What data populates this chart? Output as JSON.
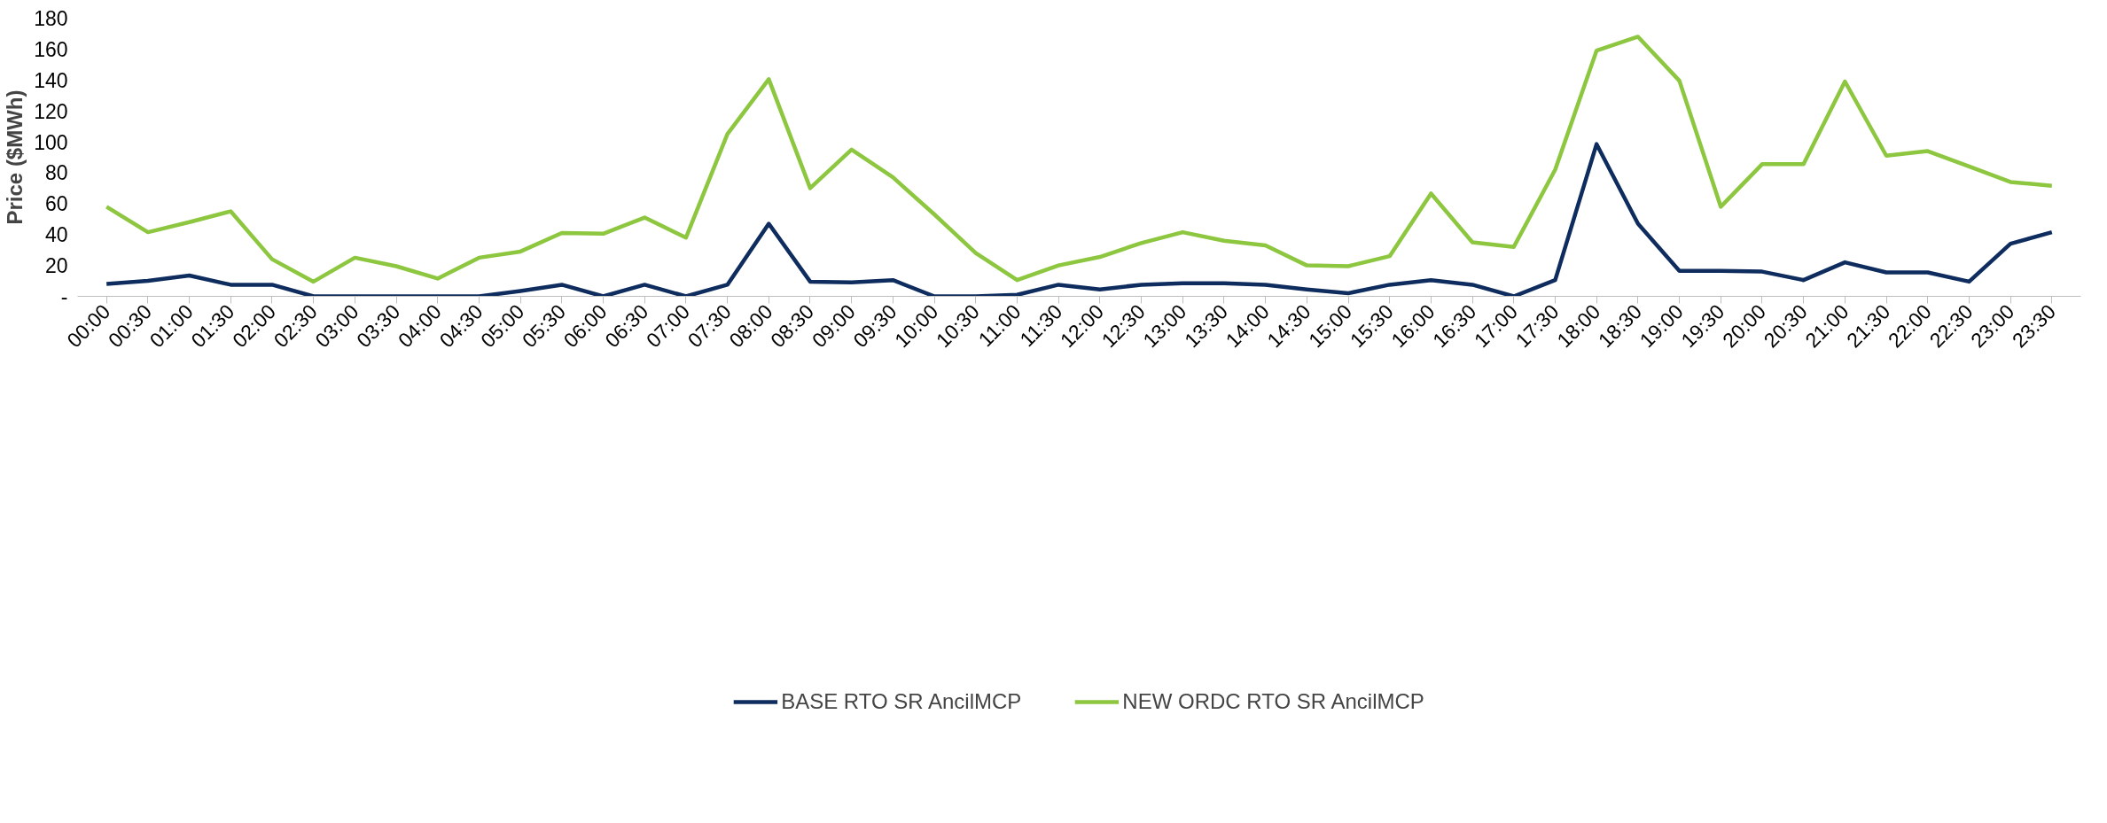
{
  "chart_data": {
    "type": "line",
    "ylabel": "Price ($MWh)",
    "categories": [
      "00:00",
      "00:30",
      "01:00",
      "01:30",
      "02:00",
      "02:30",
      "03:00",
      "03:30",
      "04:00",
      "04:30",
      "05:00",
      "05:30",
      "06:00",
      "06:30",
      "07:00",
      "07:30",
      "08:00",
      "08:30",
      "09:00",
      "09:30",
      "10:00",
      "10:30",
      "11:00",
      "11:30",
      "12:00",
      "12:30",
      "13:00",
      "13:30",
      "14:00",
      "14:30",
      "15:00",
      "15:30",
      "16:00",
      "16:30",
      "17:00",
      "17:30",
      "18:00",
      "18:30",
      "19:00",
      "19:30",
      "20:00",
      "20:30",
      "21:00",
      "21:30",
      "22:00",
      "22:30",
      "23:00",
      "23:30"
    ],
    "series": [
      {
        "name": "BASE RTO SR AncilMCP",
        "color": "#0e2d5e",
        "values": [
          8,
          10,
          13.5,
          7.5,
          7.5,
          0,
          0,
          0,
          0,
          0,
          3.5,
          7.5,
          0,
          7.5,
          0,
          7.5,
          47,
          9.5,
          9,
          10.5,
          0,
          0,
          1,
          7.5,
          4.5,
          7.5,
          8.5,
          8.5,
          7.5,
          4.5,
          2,
          7.5,
          10.5,
          7.5,
          0,
          10.5,
          98.5,
          47,
          16.5,
          16.5,
          16,
          10.5,
          22,
          15.5,
          15.5,
          9.5,
          34,
          41.5
        ]
      },
      {
        "name": "NEW ORDC RTO SR AncilMCP",
        "color": "#8dc63f",
        "values": [
          58,
          41.5,
          48,
          55,
          24,
          9.5,
          25,
          19.5,
          11.5,
          25,
          29,
          41,
          40.5,
          51,
          38,
          105,
          140.5,
          70,
          95,
          77,
          53,
          28,
          10.5,
          20,
          25.5,
          34.5,
          41.5,
          36,
          33,
          20,
          19.5,
          26,
          66.5,
          35,
          32,
          82,
          159,
          168,
          139.5,
          58,
          85.5,
          85.5,
          139,
          91,
          94,
          84,
          74,
          71.5
        ]
      }
    ],
    "ylim": [
      0,
      180
    ],
    "yticks": [
      {
        "value": 0,
        "label": "-"
      },
      20,
      40,
      60,
      80,
      100,
      120,
      140,
      160,
      180
    ],
    "grid": false,
    "legend": "bottom",
    "marker": "none",
    "line_style": "solid"
  }
}
